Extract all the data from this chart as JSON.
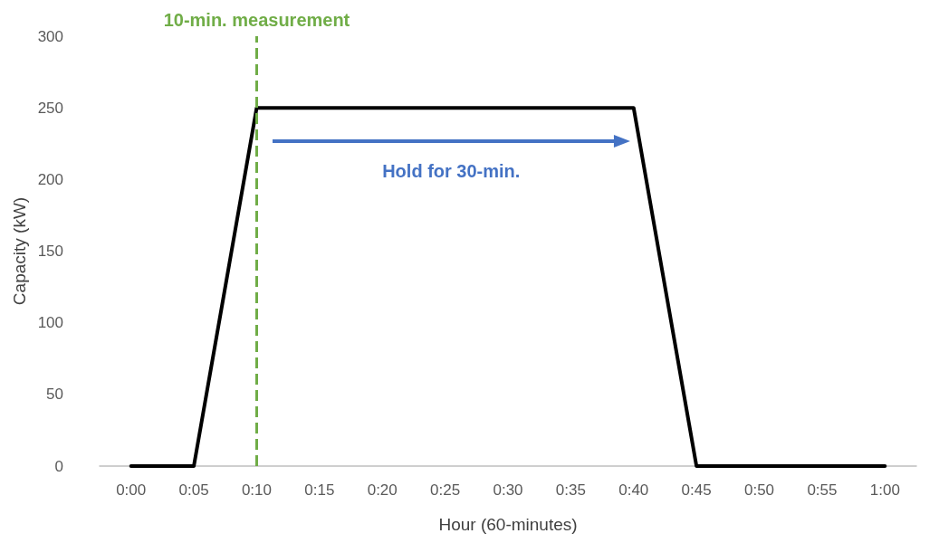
{
  "chart_data": {
    "type": "line",
    "xlabel": "Hour (60-minutes)",
    "ylabel": "Capacity (kW)",
    "categories": [
      "0:00",
      "0:05",
      "0:10",
      "0:15",
      "0:20",
      "0:25",
      "0:30",
      "0:35",
      "0:40",
      "0:45",
      "0:50",
      "0:55",
      "1:00"
    ],
    "series": [
      {
        "color": "#000000",
        "values": [
          0,
          0,
          250,
          250,
          250,
          250,
          250,
          250,
          250,
          0,
          0,
          0,
          0
        ]
      }
    ],
    "ylim": [
      0,
      300
    ],
    "yticks": [
      0,
      50,
      100,
      150,
      200,
      250,
      300
    ],
    "grid": false,
    "marker": "none",
    "line_style": "solid",
    "ref_lines": [
      {
        "axis": "x",
        "value": "0:10",
        "label": "10-min. measurement",
        "color": "#70ad47",
        "line_style": "dashed"
      }
    ],
    "annotations": [
      "Hold for 30-min."
    ]
  }
}
